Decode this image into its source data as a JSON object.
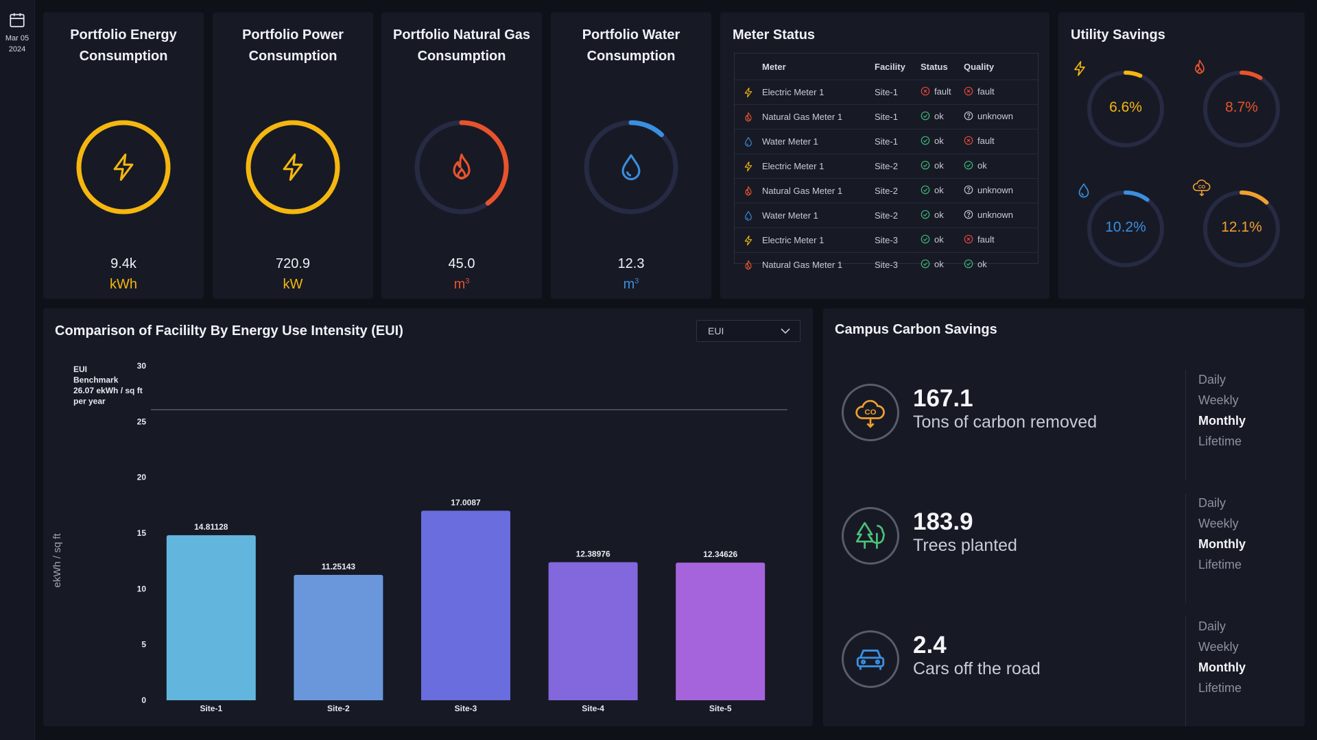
{
  "sidebar": {
    "date_line1": "Mar 05",
    "date_line2": "2024",
    "icon": "calendar-icon"
  },
  "kpis": [
    {
      "title_line1": "Portfolio Energy",
      "title_line2": "Consumption",
      "value": "9.4k",
      "unit": "kWh",
      "icon": "lightning-icon",
      "color": "#f5b70f",
      "ring_fraction": 1.0
    },
    {
      "title_line1": "Portfolio Power",
      "title_line2": "Consumption",
      "value": "720.9",
      "unit": "kW",
      "icon": "lightning-icon",
      "color": "#f5b70f",
      "ring_fraction": 1.0
    },
    {
      "title_line1": "Portfolio Natural Gas",
      "title_line2": "Consumption",
      "value": "45.0",
      "unit": "m",
      "unit_sup": "3",
      "icon": "flame-icon",
      "color": "#e8532c",
      "ring_fraction": 0.4
    },
    {
      "title_line1": "Portfolio Water",
      "title_line2": "Consumption",
      "value": "12.3",
      "unit": "m",
      "unit_sup": "3",
      "icon": "water-drop-icon",
      "color": "#3a8fe0",
      "ring_fraction": 0.12
    }
  ],
  "meter_status": {
    "title": "Meter Status",
    "columns": [
      "Meter",
      "Facility",
      "Status",
      "Quality"
    ],
    "rows": [
      {
        "icon": "lightning-icon",
        "meter": "Electric Meter 1",
        "facility": "Site-1",
        "status": "fault",
        "quality": "fault"
      },
      {
        "icon": "flame-icon",
        "meter": "Natural Gas Meter 1",
        "facility": "Site-1",
        "status": "ok",
        "quality": "unknown"
      },
      {
        "icon": "water-drop-icon",
        "meter": "Water Meter 1",
        "facility": "Site-1",
        "status": "ok",
        "quality": "fault"
      },
      {
        "icon": "lightning-icon",
        "meter": "Electric Meter 1",
        "facility": "Site-2",
        "status": "ok",
        "quality": "ok"
      },
      {
        "icon": "flame-icon",
        "meter": "Natural Gas Meter 1",
        "facility": "Site-2",
        "status": "ok",
        "quality": "unknown"
      },
      {
        "icon": "water-drop-icon",
        "meter": "Water Meter 1",
        "facility": "Site-2",
        "status": "ok",
        "quality": "unknown"
      },
      {
        "icon": "lightning-icon",
        "meter": "Electric Meter 1",
        "facility": "Site-3",
        "status": "ok",
        "quality": "fault"
      },
      {
        "icon": "flame-icon",
        "meter": "Natural Gas Meter 1",
        "facility": "Site-3",
        "status": "ok",
        "quality": "ok"
      }
    ]
  },
  "utility_savings": {
    "title": "Utility Savings",
    "items": [
      {
        "icon": "lightning-icon",
        "value": "6.6%",
        "color": "#f5b70f",
        "fraction": 0.066
      },
      {
        "icon": "flame-icon",
        "value": "8.7%",
        "color": "#e8532c",
        "fraction": 0.087
      },
      {
        "icon": "water-drop-icon",
        "value": "10.2%",
        "color": "#3a8fe0",
        "fraction": 0.102
      },
      {
        "icon": "co2-cloud-icon",
        "value": "12.1%",
        "color": "#f0a030",
        "fraction": 0.121
      }
    ]
  },
  "eui_chart": {
    "title": "Comparison of Facililty By Energy Use Intensity (EUI)",
    "dropdown_value": "EUI"
  },
  "chart_data": {
    "type": "bar",
    "categories": [
      "Site-1",
      "Site-2",
      "Site-3",
      "Site-4",
      "Site-5"
    ],
    "values": [
      14.81128,
      11.25143,
      17.0087,
      12.38976,
      12.34626
    ],
    "data_labels": [
      "14.81128",
      "11.25143",
      "17.0087",
      "12.38976",
      "12.34626"
    ],
    "bar_colors": [
      "#62b6dd",
      "#6a97dc",
      "#6a6ddd",
      "#8367dd",
      "#a664dc"
    ],
    "ylabel": "ekWh / sq ft",
    "ylim": [
      0,
      30
    ],
    "yticks": [
      0,
      5,
      10,
      15,
      20,
      25,
      30
    ],
    "benchmark": {
      "value": 26.07,
      "lines": [
        "EUI",
        "Benchmark",
        "26.07 ekWh / sq ft",
        "per year"
      ]
    },
    "grid": false
  },
  "carbon": {
    "title": "Campus Carbon Savings",
    "periods": [
      "Daily",
      "Weekly",
      "Monthly",
      "Lifetime"
    ],
    "active_period": "Monthly",
    "items": [
      {
        "icon": "co2-cloud-icon",
        "value": "167.1",
        "label": "Tons of carbon removed",
        "icon_color": "#f0a030"
      },
      {
        "icon": "trees-icon",
        "value": "183.9",
        "label": "Trees planted",
        "icon_color": "#4cc27a"
      },
      {
        "icon": "car-icon",
        "value": "2.4",
        "label": "Cars off the road",
        "icon_color": "#3a8fe0"
      }
    ]
  }
}
